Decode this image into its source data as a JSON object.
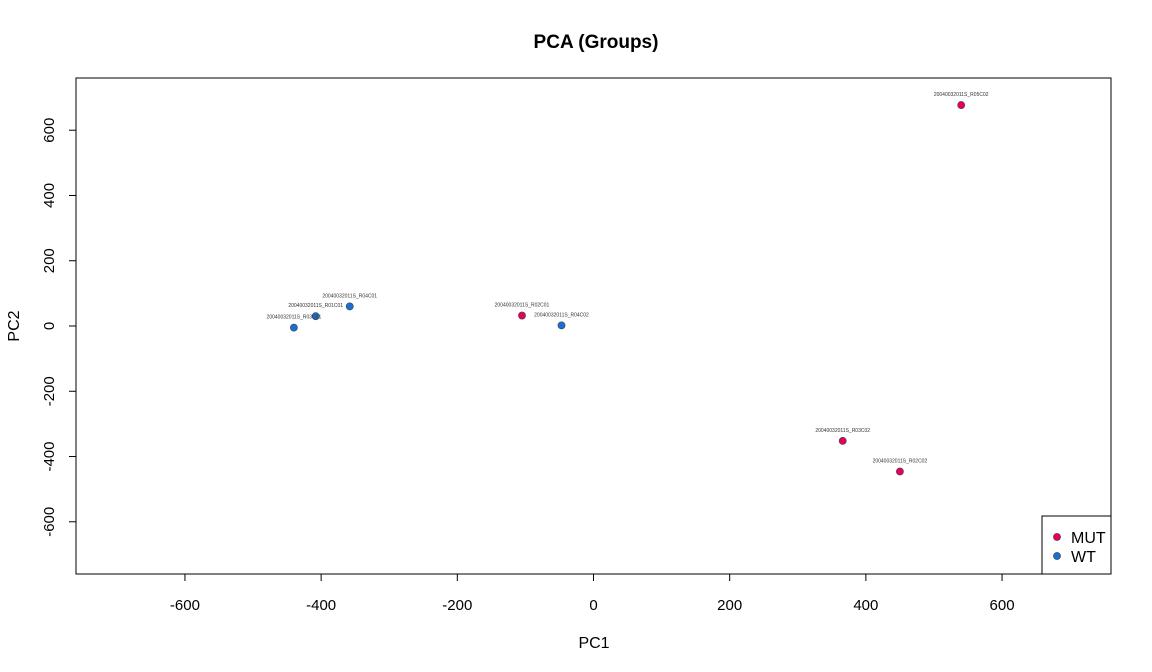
{
  "chart_data": {
    "type": "scatter",
    "title": "PCA (Groups)",
    "xlabel": "PC1",
    "ylabel": "PC2",
    "xlim": [
      -760,
      760
    ],
    "ylim": [
      -760,
      760
    ],
    "xticks": [
      -600,
      -400,
      -200,
      0,
      200,
      400,
      600
    ],
    "yticks": [
      -600,
      -400,
      -200,
      0,
      200,
      400,
      600
    ],
    "grid": false,
    "legend_position": "bottom-right",
    "series": [
      {
        "name": "MUT",
        "color": "#e6005c",
        "points": [
          {
            "label": "20040032011S_R02C01",
            "x": -105,
            "y": 32
          },
          {
            "label": "20040032011S_R05C02",
            "x": 540,
            "y": 677
          },
          {
            "label": "20040032011S_R03C02",
            "x": 366,
            "y": -352
          },
          {
            "label": "20040032011S_R02C02",
            "x": 450,
            "y": -446
          }
        ]
      },
      {
        "name": "WT",
        "color": "#1a6fd6",
        "points": [
          {
            "label": "20040032011S_R04C01",
            "x": -358,
            "y": 60
          },
          {
            "label": "20040032011S_R01C01",
            "x": -408,
            "y": 30
          },
          {
            "label": "20040032011S_R03C01",
            "x": -440,
            "y": -5
          },
          {
            "label": "20040032011S_R04C02",
            "x": -47,
            "y": 2
          }
        ]
      }
    ]
  }
}
